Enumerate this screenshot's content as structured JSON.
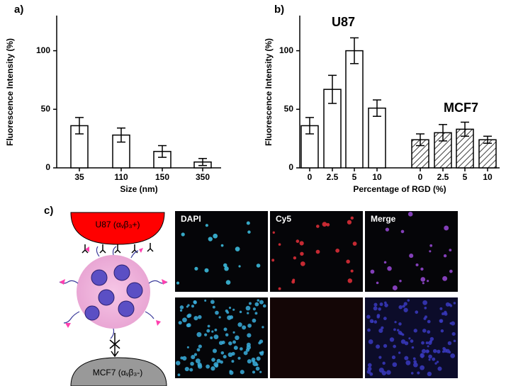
{
  "panel_labels": [
    "a)",
    "b)",
    "c)"
  ],
  "chart_data": [
    {
      "type": "bar",
      "xlabel": "Size (nm)",
      "ylabel": "Fluorescence Intensity (%)",
      "categories": [
        "35",
        "110",
        "150",
        "350"
      ],
      "series": [
        {
          "color": "#ffffff",
          "hatch": false,
          "values": [
            36,
            28,
            14,
            5
          ],
          "errors": [
            7,
            6,
            5,
            3
          ]
        }
      ],
      "ylim": [
        0,
        130
      ],
      "yticks": [
        0,
        50,
        100
      ]
    },
    {
      "type": "bar",
      "xlabel": "Percentage of RGD (%)",
      "ylabel": "Fluorescence Intensity (%)",
      "categories": [
        "0",
        "2.5",
        "5",
        "10",
        "0",
        "2.5",
        "5",
        "10"
      ],
      "series": [
        {
          "name": "U87",
          "color": "#ffffff",
          "hatch": false,
          "values": [
            36,
            67,
            100,
            51,
            null,
            null,
            null,
            null
          ],
          "errors": [
            7,
            12,
            11,
            7,
            null,
            null,
            null,
            null
          ]
        },
        {
          "name": "MCF7",
          "color": "#ffffff",
          "hatch": true,
          "values": [
            null,
            null,
            null,
            null,
            24,
            30,
            33,
            24
          ],
          "errors": [
            null,
            null,
            null,
            null,
            5,
            7,
            6,
            3
          ]
        }
      ],
      "ylim": [
        0,
        130
      ],
      "yticks": [
        0,
        50,
        100
      ]
    }
  ],
  "illustration": {
    "top_cell": "U87 (αᵥβ₃+)",
    "bottom_cell": "MCF7 (αᵥβ₃-)"
  },
  "micrographs": {
    "labels": [
      "DAPI",
      "Cy5",
      "Merge"
    ]
  }
}
